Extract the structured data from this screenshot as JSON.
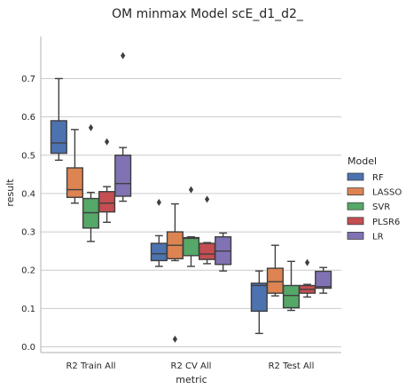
{
  "chart_data": {
    "type": "box",
    "title": "OM minmax Model scE_d1_d2_",
    "xlabel": "metric",
    "ylabel": "result",
    "ylim": [
      -0.015,
      0.81
    ],
    "yticks": [
      "0.0",
      "0.1",
      "0.2",
      "0.3",
      "0.4",
      "0.5",
      "0.6",
      "0.7"
    ],
    "grid": "horizontal",
    "legend_position": "right",
    "legend_title": "Model",
    "categories": [
      "R2 Train All",
      "R2 CV All",
      "R2 Test All"
    ],
    "series": [
      {
        "name": "RF",
        "color": "#4c72b0",
        "boxes": [
          {
            "whisker_low": 0.487,
            "q1": 0.505,
            "median": 0.532,
            "q3": 0.59,
            "whisker_high": 0.7,
            "outliers": []
          },
          {
            "whisker_low": 0.21,
            "q1": 0.225,
            "median": 0.243,
            "q3": 0.27,
            "whisker_high": 0.29,
            "outliers": [
              0.377
            ]
          },
          {
            "whisker_low": 0.035,
            "q1": 0.093,
            "median": 0.16,
            "q3": 0.166,
            "whisker_high": 0.198,
            "outliers": []
          }
        ]
      },
      {
        "name": "LASSO",
        "color": "#dd8452",
        "boxes": [
          {
            "whisker_low": 0.375,
            "q1": 0.39,
            "median": 0.41,
            "q3": 0.467,
            "whisker_high": 0.567,
            "outliers": []
          },
          {
            "whisker_low": 0.225,
            "q1": 0.23,
            "median": 0.265,
            "q3": 0.3,
            "whisker_high": 0.373,
            "outliers": [
              0.02
            ]
          },
          {
            "whisker_low": 0.133,
            "q1": 0.14,
            "median": 0.17,
            "q3": 0.205,
            "whisker_high": 0.265,
            "outliers": []
          }
        ]
      },
      {
        "name": "SVR",
        "color": "#55a868",
        "boxes": [
          {
            "whisker_low": 0.275,
            "q1": 0.31,
            "median": 0.35,
            "q3": 0.387,
            "whisker_high": 0.403,
            "outliers": [
              0.572
            ]
          },
          {
            "whisker_low": 0.21,
            "q1": 0.238,
            "median": 0.283,
            "q3": 0.285,
            "whisker_high": 0.287,
            "outliers": [
              0.41
            ]
          },
          {
            "whisker_low": 0.095,
            "q1": 0.102,
            "median": 0.134,
            "q3": 0.16,
            "whisker_high": 0.223,
            "outliers": []
          }
        ]
      },
      {
        "name": "PLSR6",
        "color": "#c44e52",
        "boxes": [
          {
            "whisker_low": 0.325,
            "q1": 0.352,
            "median": 0.375,
            "q3": 0.405,
            "whisker_high": 0.418,
            "outliers": [
              0.535
            ]
          },
          {
            "whisker_low": 0.217,
            "q1": 0.228,
            "median": 0.242,
            "q3": 0.27,
            "whisker_high": 0.272,
            "outliers": [
              0.385
            ]
          },
          {
            "whisker_low": 0.13,
            "q1": 0.14,
            "median": 0.15,
            "q3": 0.16,
            "whisker_high": 0.163,
            "outliers": [
              0.22
            ]
          }
        ]
      },
      {
        "name": "LR",
        "color": "#8172b3",
        "boxes": [
          {
            "whisker_low": 0.38,
            "q1": 0.393,
            "median": 0.426,
            "q3": 0.5,
            "whisker_high": 0.52,
            "outliers": [
              0.76
            ]
          },
          {
            "whisker_low": 0.198,
            "q1": 0.215,
            "median": 0.25,
            "q3": 0.287,
            "whisker_high": 0.297,
            "outliers": []
          },
          {
            "whisker_low": 0.14,
            "q1": 0.153,
            "median": 0.157,
            "q3": 0.197,
            "whisker_high": 0.207,
            "outliers": []
          }
        ]
      }
    ]
  }
}
